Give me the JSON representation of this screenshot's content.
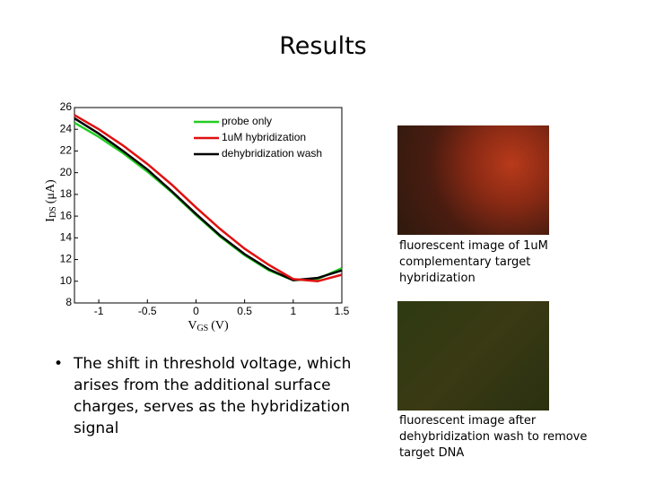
{
  "title": "Results",
  "chart_data": {
    "type": "line",
    "x": [
      -1.25,
      -1,
      -0.75,
      -0.5,
      -0.25,
      0,
      0.25,
      0.5,
      0.75,
      1,
      1.25,
      1.5
    ],
    "series": [
      {
        "name": "probe only",
        "color": "#22cc22",
        "values": [
          24.6,
          23.3,
          21.8,
          20.1,
          18.2,
          16.1,
          14.1,
          12.4,
          11.0,
          10.1,
          10.2,
          11.2
        ]
      },
      {
        "name": "1uM hybridization",
        "color": "#e01010",
        "values": [
          25.3,
          24.0,
          22.5,
          20.8,
          18.9,
          16.8,
          14.8,
          13.0,
          11.5,
          10.2,
          10.0,
          10.6
        ]
      },
      {
        "name": "dehybridization wash",
        "color": "#000000",
        "values": [
          25.0,
          23.6,
          22.0,
          20.3,
          18.3,
          16.2,
          14.2,
          12.5,
          11.1,
          10.1,
          10.3,
          11.0
        ]
      }
    ],
    "xlim": [
      -1.25,
      1.5
    ],
    "xticks": [
      -1,
      -0.5,
      0,
      0.5,
      1,
      1.5
    ],
    "ylim": [
      8,
      26
    ],
    "yticks": [
      8,
      10,
      12,
      14,
      16,
      18,
      20,
      22,
      24,
      26
    ],
    "xlabel": {
      "main": "V",
      "sub": "GS",
      "unit": "(V)"
    },
    "ylabel": {
      "main": "I",
      "sub": "DS",
      "unit": "(μA)"
    },
    "legend": "upper right"
  },
  "bullet": "The shift in threshold voltage, which arises from the additional surface charges, serves as the hybridization signal",
  "captions": [
    "fluorescent image of 1uM complementary target hybridization",
    "fluorescent image after dehybridization wash to remove target DNA"
  ]
}
